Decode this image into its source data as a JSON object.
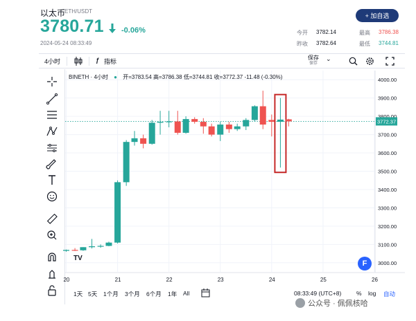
{
  "header": {
    "asset_name": "以太币",
    "asset_symbol": "ETH/USDT",
    "price": "3780.71",
    "change": "-0.06%",
    "timestamp": "2024-05-24 08:33:49",
    "add_button": "+ 加自选",
    "stats": {
      "open_label": "今开",
      "open_value": "3782.14",
      "high_label": "最高",
      "high_value": "3786.38",
      "prev_label": "昨收",
      "prev_value": "3782.64",
      "low_label": "最低",
      "low_value": "3744.81"
    }
  },
  "toolbar": {
    "interval": "4小时",
    "indicators": "指标",
    "save": "保存",
    "save_sub": "保存"
  },
  "legend": {
    "symbol": "BINETH · 4小时",
    "ohlc": "开=3783.54 高=3786.38 低=3744.81 收=3772.37 -11.48 (-0.30%)"
  },
  "bottombar": {
    "ranges": [
      "1天",
      "5天",
      "1个月",
      "3个月",
      "6个月",
      "1年",
      "All"
    ],
    "time": "08:33:49 (UTC+8)",
    "percent": "%",
    "log": "log",
    "auto": "自动"
  },
  "watermark": "公众号 · 佩佩核哈",
  "colors": {
    "up": "#26a69a",
    "down": "#ef5350",
    "accent": "#2962ff",
    "button": "#1e3a78"
  },
  "chart_data": {
    "type": "candlestick",
    "title": "",
    "xlabel": "",
    "ylabel": "",
    "ylim": [
      2950,
      4050
    ],
    "yticks": [
      3000,
      3100,
      3200,
      3300,
      3400,
      3500,
      3600,
      3700,
      3800,
      3900,
      4000
    ],
    "ytick_labels": [
      "3000.00",
      "3100.00",
      "3200.00",
      "3300.00",
      "3400.00",
      "3500.00",
      "3600.00",
      "3700.00",
      "3800.00",
      "3900.00",
      "4000.00"
    ],
    "xlim": [
      19.98,
      26.0
    ],
    "xticks": [
      20,
      21,
      22,
      23,
      24,
      25,
      26
    ],
    "xtick_labels": [
      "20",
      "21",
      "22",
      "23",
      "24",
      "25",
      "26"
    ],
    "last_price_label": "3772.37",
    "last_price": 3772.37,
    "grid": true,
    "candles": [
      {
        "t": 20.0,
        "o": 3065,
        "h": 3072,
        "l": 3060,
        "c": 3070
      },
      {
        "t": 20.17,
        "o": 3070,
        "h": 3080,
        "l": 3064,
        "c": 3068
      },
      {
        "t": 20.33,
        "o": 3068,
        "h": 3085,
        "l": 3065,
        "c": 3085
      },
      {
        "t": 20.5,
        "o": 3085,
        "h": 3130,
        "l": 3078,
        "c": 3090
      },
      {
        "t": 20.67,
        "o": 3090,
        "h": 3100,
        "l": 3082,
        "c": 3092
      },
      {
        "t": 20.83,
        "o": 3092,
        "h": 3115,
        "l": 3090,
        "c": 3110
      },
      {
        "t": 21.0,
        "o": 3110,
        "h": 3450,
        "l": 3105,
        "c": 3440
      },
      {
        "t": 21.17,
        "o": 3440,
        "h": 3670,
        "l": 3420,
        "c": 3660
      },
      {
        "t": 21.33,
        "o": 3660,
        "h": 3720,
        "l": 3640,
        "c": 3680
      },
      {
        "t": 21.5,
        "o": 3680,
        "h": 3700,
        "l": 3625,
        "c": 3650
      },
      {
        "t": 21.67,
        "o": 3650,
        "h": 3780,
        "l": 3645,
        "c": 3765
      },
      {
        "t": 21.83,
        "o": 3765,
        "h": 3830,
        "l": 3700,
        "c": 3770
      },
      {
        "t": 22.0,
        "o": 3770,
        "h": 3830,
        "l": 3740,
        "c": 3772
      },
      {
        "t": 22.17,
        "o": 3772,
        "h": 3830,
        "l": 3700,
        "c": 3710
      },
      {
        "t": 22.33,
        "o": 3710,
        "h": 3800,
        "l": 3705,
        "c": 3785
      },
      {
        "t": 22.5,
        "o": 3785,
        "h": 3795,
        "l": 3760,
        "c": 3770
      },
      {
        "t": 22.67,
        "o": 3770,
        "h": 3790,
        "l": 3705,
        "c": 3745
      },
      {
        "t": 22.83,
        "o": 3745,
        "h": 3760,
        "l": 3690,
        "c": 3700
      },
      {
        "t": 23.0,
        "o": 3700,
        "h": 3770,
        "l": 3665,
        "c": 3755
      },
      {
        "t": 23.17,
        "o": 3755,
        "h": 3770,
        "l": 3710,
        "c": 3730
      },
      {
        "t": 23.33,
        "o": 3730,
        "h": 3760,
        "l": 3720,
        "c": 3745
      },
      {
        "t": 23.5,
        "o": 3745,
        "h": 3790,
        "l": 3725,
        "c": 3780
      },
      {
        "t": 23.67,
        "o": 3780,
        "h": 3860,
        "l": 3770,
        "c": 3855
      },
      {
        "t": 23.83,
        "o": 3855,
        "h": 3940,
        "l": 3730,
        "c": 3755
      },
      {
        "t": 24.0,
        "o": 3780,
        "h": 3810,
        "l": 3690,
        "c": 3770
      },
      {
        "t": 24.17,
        "o": 3770,
        "h": 3900,
        "l": 3520,
        "c": 3782
      },
      {
        "t": 24.33,
        "o": 3783.54,
        "h": 3786.38,
        "l": 3744.81,
        "c": 3772.37
      }
    ],
    "highlight_candle": 25
  }
}
